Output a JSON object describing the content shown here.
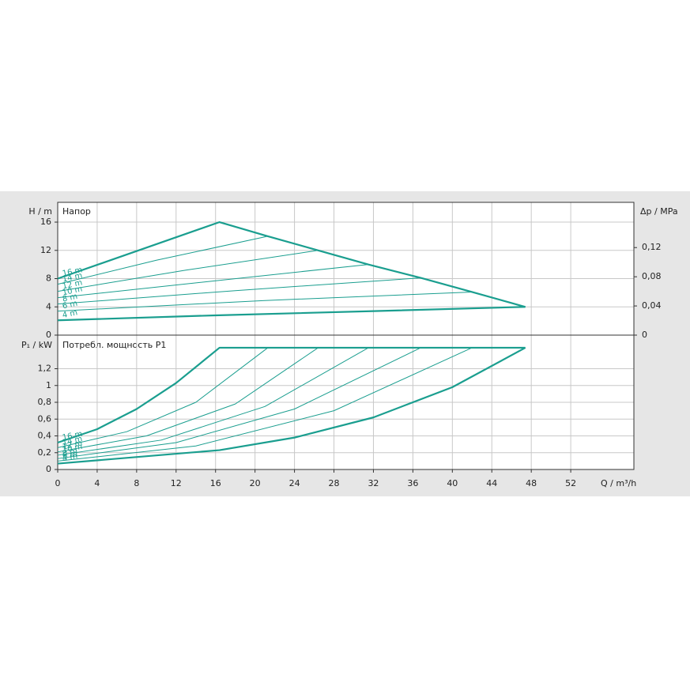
{
  "chart_data": [
    {
      "type": "line",
      "title": "Напор",
      "ylabel": "H / m",
      "y2label": "Δp / MPa",
      "ylim": [
        0,
        18.8
      ],
      "yticks": [
        0,
        4,
        8,
        12,
        16
      ],
      "y2lim": [
        0,
        0.182
      ],
      "y2ticks": [
        0,
        {
          "value": 0.04,
          "label": "0,04"
        },
        {
          "value": 0.08,
          "label": "0,08"
        },
        {
          "value": 0.12,
          "label": "0,12"
        }
      ],
      "color": "#1a9e8f",
      "series": [
        {
          "name": "16 m",
          "x": [
            0,
            16.4,
            21.3,
            26.4,
            31.5,
            36.8,
            42,
            47.4
          ],
          "values": [
            8,
            16,
            14,
            12,
            10,
            8.1,
            6.1,
            4
          ]
        },
        {
          "name": "14 m",
          "x": [
            0,
            10,
            21.3
          ],
          "values": [
            7.2,
            10.6,
            14
          ]
        },
        {
          "name": "12 m",
          "x": [
            0,
            13,
            26.4
          ],
          "values": [
            6.2,
            9.2,
            12
          ]
        },
        {
          "name": "10 m",
          "x": [
            0,
            16,
            31.5
          ],
          "values": [
            5.3,
            7.7,
            10
          ]
        },
        {
          "name": "8 m",
          "x": [
            0,
            18,
            36.8
          ],
          "values": [
            4.4,
            6.3,
            8.1
          ]
        },
        {
          "name": "6 m",
          "x": [
            0,
            21,
            42
          ],
          "values": [
            3.4,
            4.9,
            6.1
          ]
        },
        {
          "name": "4 m",
          "x": [
            0,
            16,
            32,
            47.4
          ],
          "values": [
            2.1,
            2.8,
            3.4,
            4
          ]
        }
      ]
    },
    {
      "type": "line",
      "title": "Потребл. мощность P1",
      "ylabel": "P₁ / kW",
      "xlabel": "Q / m³/h",
      "xlim": [
        0,
        58.4
      ],
      "xticks": [
        0,
        4,
        8,
        12,
        16,
        20,
        24,
        28,
        32,
        36,
        40,
        44,
        48,
        52
      ],
      "ylim": [
        0,
        1.6
      ],
      "yticks": [
        0,
        {
          "value": 0.2,
          "label": "0,2"
        },
        {
          "value": 0.4,
          "label": "0,4"
        },
        {
          "value": 0.6,
          "label": "0,6"
        },
        {
          "value": 0.8,
          "label": "0,8"
        },
        1,
        {
          "value": 1.2,
          "label": "1,2"
        }
      ],
      "color": "#1a9e8f",
      "series": [
        {
          "name": "16 m",
          "x": [
            0,
            4,
            8,
            12,
            16.4,
            47.4
          ],
          "values": [
            0.32,
            0.48,
            0.72,
            1.03,
            1.45,
            1.45
          ]
        },
        {
          "name": "14 m",
          "x": [
            0,
            7,
            14,
            21.3
          ],
          "values": [
            0.26,
            0.45,
            0.8,
            1.45
          ]
        },
        {
          "name": "12 m",
          "x": [
            0,
            9,
            18,
            26.4
          ],
          "values": [
            0.21,
            0.4,
            0.78,
            1.45
          ]
        },
        {
          "name": "10 m",
          "x": [
            0,
            10.5,
            21,
            31.5
          ],
          "values": [
            0.17,
            0.35,
            0.75,
            1.45
          ]
        },
        {
          "name": "8 m",
          "x": [
            0,
            12,
            24,
            36.8
          ],
          "values": [
            0.13,
            0.32,
            0.72,
            1.45
          ]
        },
        {
          "name": "6 m",
          "x": [
            0,
            14,
            28,
            42
          ],
          "values": [
            0.1,
            0.28,
            0.7,
            1.45
          ]
        },
        {
          "name": "4 m",
          "x": [
            0,
            16.4,
            24,
            32,
            40,
            47.4
          ],
          "values": [
            0.07,
            0.23,
            0.38,
            0.62,
            0.98,
            1.45
          ]
        }
      ]
    }
  ]
}
